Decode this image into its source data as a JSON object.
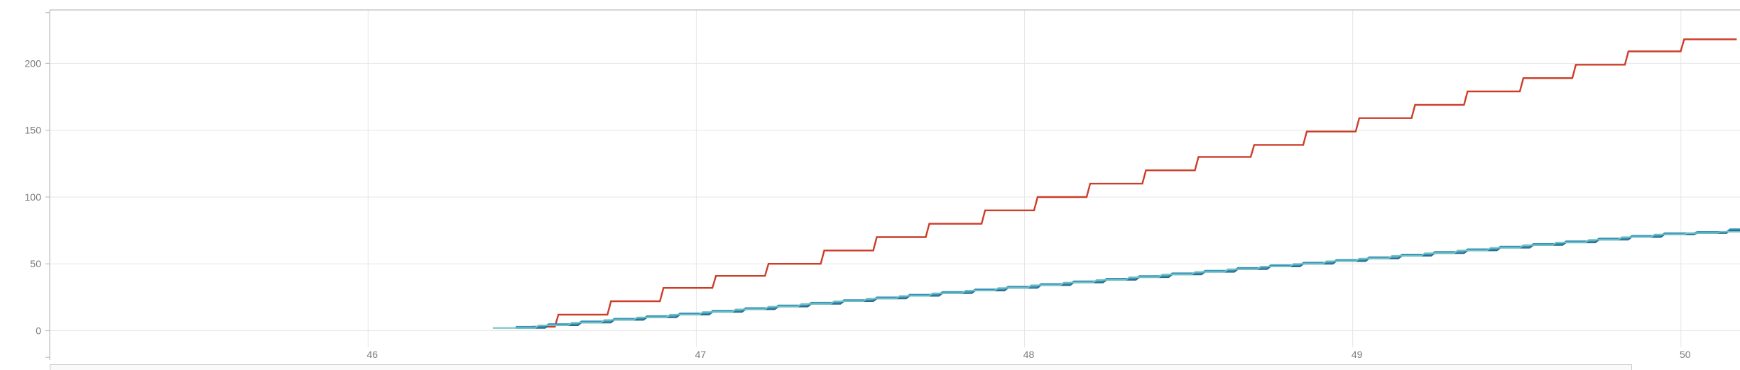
{
  "chart_data": {
    "type": "line",
    "title": "",
    "xlabel": "",
    "ylabel": "",
    "xlim": [
      45.03,
      50.18
    ],
    "ylim": [
      -22,
      240
    ],
    "x_ticks": [
      46,
      47,
      48,
      49,
      50
    ],
    "y_ticks": [
      0,
      50,
      100,
      150,
      200
    ],
    "grid": true,
    "legend": "none",
    "step": true,
    "series": [
      {
        "color": "#cc3d27",
        "x": [
          46.5,
          46.58,
          46.74,
          46.9,
          47.06,
          47.22,
          47.39,
          47.55,
          47.71,
          47.88,
          48.04,
          48.2,
          48.37,
          48.53,
          48.7,
          48.86,
          49.02,
          49.19,
          49.35,
          49.52,
          49.68,
          49.84,
          50.01,
          50.17
        ],
        "y": [
          3,
          12,
          22,
          32,
          41,
          50,
          60,
          70,
          80,
          90,
          100,
          110,
          120,
          130,
          139,
          149,
          159,
          169,
          179,
          189,
          199,
          209,
          218,
          218
        ]
      },
      {
        "color": "#3a93bd",
        "x": [
          46.45,
          46.55,
          46.65,
          46.75,
          46.85,
          46.95,
          47.05,
          47.15,
          47.25,
          47.35,
          47.45,
          47.55,
          47.65,
          47.75,
          47.85,
          47.95,
          48.05,
          48.15,
          48.25,
          48.35,
          48.45,
          48.55,
          48.65,
          48.75,
          48.85,
          48.95,
          49.05,
          49.15,
          49.25,
          49.35,
          49.45,
          49.55,
          49.65,
          49.75,
          49.85,
          49.95,
          50.05,
          50.15,
          50.18
        ],
        "y": [
          3,
          5,
          7,
          9,
          11,
          13,
          15,
          17,
          19,
          21,
          23,
          25,
          27,
          29,
          31,
          33,
          35,
          37,
          39,
          41,
          43,
          45,
          47,
          49,
          51,
          53,
          55,
          57,
          59,
          61,
          63,
          65,
          67,
          69,
          71,
          73,
          74,
          76,
          76
        ]
      },
      {
        "color": "#2a6d8f",
        "x": [
          46.45,
          46.55,
          46.65,
          46.75,
          46.85,
          46.95,
          47.05,
          47.15,
          47.25,
          47.35,
          47.45,
          47.55,
          47.65,
          47.75,
          47.85,
          47.95,
          48.05,
          48.15,
          48.25,
          48.35,
          48.45,
          48.55,
          48.65,
          48.75,
          48.85,
          48.95,
          49.05,
          49.15,
          49.25,
          49.35,
          49.45,
          49.55,
          49.65,
          49.75,
          49.85,
          49.95,
          50.05,
          50.15,
          50.18
        ],
        "y": [
          2,
          4,
          6,
          8,
          10,
          12,
          14,
          16,
          18,
          20,
          22,
          24,
          26,
          28,
          30,
          32,
          34,
          36,
          38,
          40,
          42,
          44,
          46,
          48,
          50,
          52,
          54,
          56,
          58,
          60,
          62,
          64,
          66,
          68,
          70,
          72,
          73,
          75,
          75
        ]
      },
      {
        "color": "#6ec3c1",
        "x": [
          46.38,
          46.52,
          46.62,
          46.72,
          46.82,
          46.92,
          47.02,
          47.12,
          47.22,
          47.32,
          47.42,
          47.52,
          47.62,
          47.72,
          47.82,
          47.92,
          48.02,
          48.12,
          48.22,
          48.32,
          48.42,
          48.52,
          48.62,
          48.72,
          48.82,
          48.92,
          49.02,
          49.12,
          49.22,
          49.32,
          49.42,
          49.52,
          49.62,
          49.72,
          49.82,
          49.92,
          50.02,
          50.12,
          50.18
        ],
        "y": [
          2,
          4,
          6,
          8,
          10,
          12,
          14,
          16,
          18,
          20,
          22,
          24,
          26,
          28,
          30,
          32,
          34,
          36,
          38,
          40,
          42,
          44,
          46,
          48,
          50,
          52,
          54,
          56,
          58,
          60,
          62,
          64,
          66,
          68,
          70,
          72,
          73,
          74,
          74
        ]
      }
    ]
  }
}
